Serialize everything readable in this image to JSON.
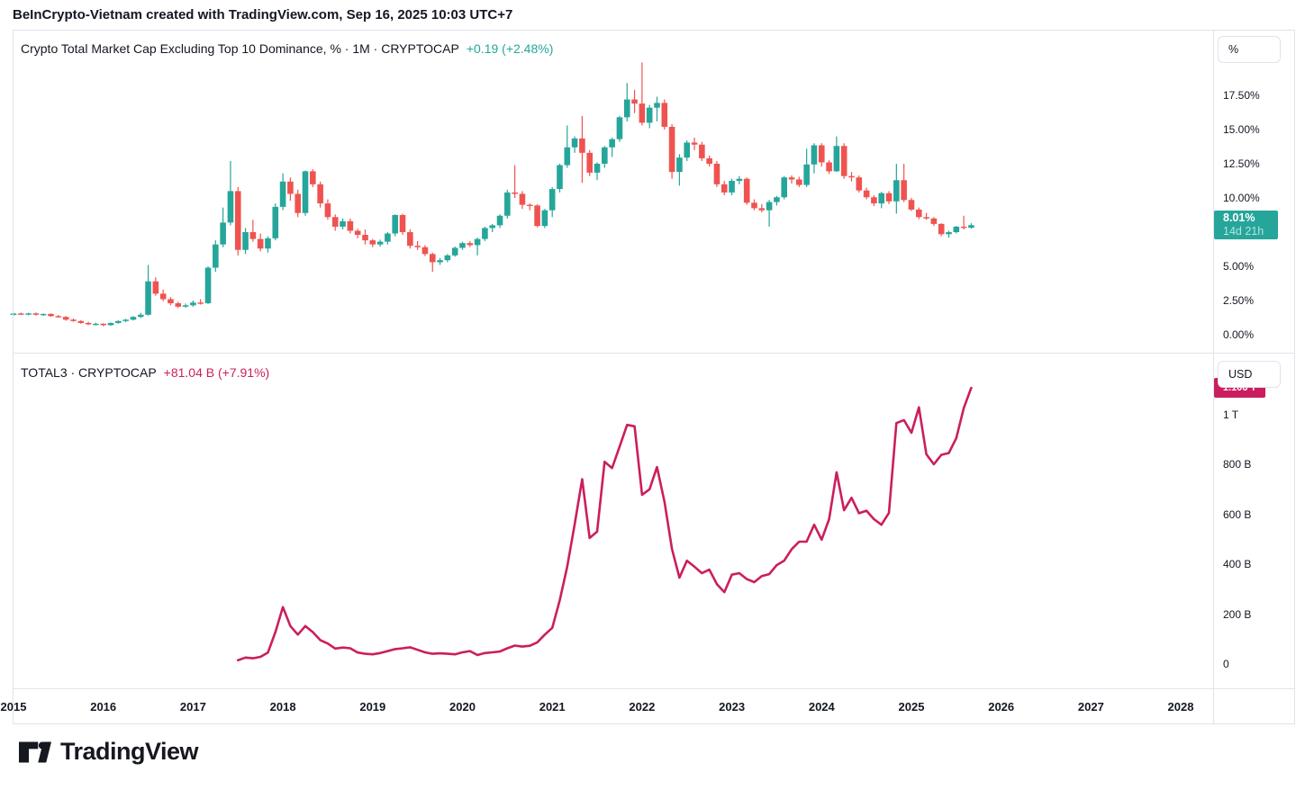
{
  "header": {
    "text": "BeInCrypto-Vietnam created with TradingView.com, Sep 16, 2025 10:03 UTC+7"
  },
  "panes": {
    "dominance": {
      "title": "Crypto Total Market Cap Excluding Top 10 Dominance, % · 1M · CRYPTOCAP",
      "change": "+0.19 (+2.48%)",
      "unit_button": "%",
      "ticks": [
        {
          "label": "17.50%",
          "value": 17.5
        },
        {
          "label": "15.00%",
          "value": 15.0
        },
        {
          "label": "12.50%",
          "value": 12.5
        },
        {
          "label": "10.00%",
          "value": 10.0
        },
        {
          "label": "5.00%",
          "value": 5.0
        },
        {
          "label": "2.50%",
          "value": 2.5
        },
        {
          "label": "0.00%",
          "value": 0.0
        }
      ],
      "price_badge": {
        "value": "8.01%",
        "countdown": "14d 21h",
        "numeric": 8.01
      }
    },
    "total3": {
      "title": "TOTAL3 · CRYPTOCAP",
      "change": "+81.04 B (+7.91%)",
      "unit_button": "USD",
      "ticks": [
        {
          "label": "1 T",
          "value": 1000
        },
        {
          "label": "800 B",
          "value": 800
        },
        {
          "label": "600 B",
          "value": 600
        },
        {
          "label": "400 B",
          "value": 400
        },
        {
          "label": "200 B",
          "value": 200
        },
        {
          "label": "0",
          "value": 0
        }
      ],
      "price_badge": {
        "value": "1.106 T",
        "numeric": 1106
      }
    }
  },
  "time_axis": {
    "years": [
      "2015",
      "2016",
      "2017",
      "2018",
      "2019",
      "2020",
      "2021",
      "2022",
      "2023",
      "2024",
      "2025",
      "2026",
      "2027",
      "2028"
    ]
  },
  "logo": {
    "text": "TradingView"
  },
  "colors": {
    "text": "#131722",
    "border": "#e0e3eb",
    "candle_up": "#26a69a",
    "candle_down": "#ef5350",
    "badge_teal": "#26a69a",
    "magenta": "#cb1e5e"
  },
  "chart_data": [
    {
      "type": "candlestick",
      "title": "Crypto Total Market Cap Excluding Top 10 Dominance, % · 1M · CRYPTOCAP",
      "interval": "1M",
      "unit": "%",
      "start": "2015-01",
      "ylim": [
        0,
        22
      ],
      "grid": false,
      "last_close": 8.01,
      "change": 0.19,
      "change_pct": 2.48,
      "ohlc": [
        [
          1.45,
          1.6,
          1.38,
          1.55
        ],
        [
          1.55,
          1.62,
          1.45,
          1.5
        ],
        [
          1.5,
          1.6,
          1.42,
          1.56
        ],
        [
          1.56,
          1.62,
          1.4,
          1.46
        ],
        [
          1.46,
          1.55,
          1.38,
          1.52
        ],
        [
          1.52,
          1.56,
          1.3,
          1.36
        ],
        [
          1.36,
          1.45,
          1.25,
          1.3
        ],
        [
          1.3,
          1.36,
          1.02,
          1.1
        ],
        [
          1.1,
          1.18,
          0.95,
          1.0
        ],
        [
          1.0,
          1.06,
          0.8,
          0.86
        ],
        [
          0.86,
          0.95,
          0.7,
          0.76
        ],
        [
          0.76,
          0.88,
          0.68,
          0.8
        ],
        [
          0.8,
          0.84,
          0.62,
          0.7
        ],
        [
          0.7,
          0.9,
          0.65,
          0.86
        ],
        [
          0.86,
          1.05,
          0.8,
          1.0
        ],
        [
          1.0,
          1.16,
          0.92,
          1.1
        ],
        [
          1.1,
          1.36,
          1.04,
          1.3
        ],
        [
          1.3,
          1.6,
          1.22,
          1.46
        ],
        [
          1.46,
          5.1,
          1.4,
          3.9
        ],
        [
          3.9,
          4.2,
          2.85,
          3.0
        ],
        [
          3.0,
          3.3,
          2.45,
          2.6
        ],
        [
          2.6,
          2.75,
          2.15,
          2.3
        ],
        [
          2.3,
          2.42,
          1.95,
          2.05
        ],
        [
          2.05,
          2.28,
          1.98,
          2.15
        ],
        [
          2.15,
          2.5,
          2.05,
          2.35
        ],
        [
          2.35,
          2.6,
          2.2,
          2.3
        ],
        [
          2.3,
          5.0,
          2.25,
          4.9
        ],
        [
          4.9,
          6.9,
          4.6,
          6.6
        ],
        [
          6.6,
          9.3,
          6.4,
          8.2
        ],
        [
          8.2,
          12.7,
          8.0,
          10.5
        ],
        [
          10.5,
          10.8,
          5.8,
          6.2
        ],
        [
          6.2,
          7.8,
          5.9,
          7.5
        ],
        [
          7.5,
          8.4,
          6.8,
          7.0
        ],
        [
          7.0,
          7.4,
          6.1,
          6.3
        ],
        [
          6.3,
          7.2,
          6.0,
          7.05
        ],
        [
          7.05,
          9.6,
          6.9,
          9.35
        ],
        [
          9.35,
          11.8,
          9.1,
          11.2
        ],
        [
          11.2,
          11.5,
          9.8,
          10.3
        ],
        [
          10.3,
          10.6,
          8.6,
          8.9
        ],
        [
          8.9,
          12.0,
          8.7,
          11.95
        ],
        [
          11.95,
          12.1,
          10.8,
          11.0
        ],
        [
          11.0,
          11.2,
          9.3,
          9.6
        ],
        [
          9.6,
          9.9,
          8.4,
          8.6
        ],
        [
          8.6,
          8.8,
          7.6,
          7.9
        ],
        [
          7.9,
          8.5,
          7.7,
          8.3
        ],
        [
          8.3,
          8.5,
          7.4,
          7.6
        ],
        [
          7.6,
          7.75,
          7.05,
          7.3
        ],
        [
          7.3,
          7.7,
          6.6,
          6.9
        ],
        [
          6.9,
          7.0,
          6.4,
          6.6
        ],
        [
          6.6,
          6.95,
          6.45,
          6.8
        ],
        [
          6.8,
          7.5,
          6.6,
          7.4
        ],
        [
          7.4,
          8.8,
          7.2,
          8.75
        ],
        [
          8.75,
          8.85,
          7.3,
          7.5
        ],
        [
          7.5,
          7.7,
          6.3,
          6.5
        ],
        [
          6.5,
          6.85,
          6.2,
          6.4
        ],
        [
          6.4,
          6.55,
          5.75,
          5.9
        ],
        [
          5.9,
          6.0,
          4.6,
          5.3
        ],
        [
          5.3,
          5.6,
          5.1,
          5.45
        ],
        [
          5.45,
          5.9,
          5.3,
          5.8
        ],
        [
          5.8,
          6.45,
          5.7,
          6.35
        ],
        [
          6.35,
          6.8,
          6.2,
          6.7
        ],
        [
          6.7,
          6.85,
          6.4,
          6.55
        ],
        [
          6.55,
          7.1,
          5.8,
          7.0
        ],
        [
          7.0,
          7.9,
          6.85,
          7.8
        ],
        [
          7.8,
          8.1,
          7.5,
          8.0
        ],
        [
          8.0,
          8.8,
          7.8,
          8.7
        ],
        [
          8.7,
          10.6,
          8.5,
          10.4
        ],
        [
          10.4,
          12.4,
          10.0,
          10.3
        ],
        [
          10.3,
          10.5,
          9.2,
          9.5
        ],
        [
          9.5,
          9.6,
          9.1,
          9.45
        ],
        [
          9.45,
          9.55,
          7.85,
          7.95
        ],
        [
          7.95,
          9.2,
          7.8,
          9.1
        ],
        [
          9.1,
          10.8,
          8.6,
          10.65
        ],
        [
          10.65,
          12.5,
          10.4,
          12.4
        ],
        [
          12.4,
          15.3,
          12.2,
          13.7
        ],
        [
          13.7,
          14.5,
          13.3,
          14.35
        ],
        [
          14.35,
          16.0,
          11.1,
          13.3
        ],
        [
          13.3,
          13.5,
          11.6,
          11.85
        ],
        [
          11.85,
          12.6,
          11.3,
          12.5
        ],
        [
          12.5,
          13.8,
          12.2,
          13.7
        ],
        [
          13.7,
          14.4,
          13.0,
          14.3
        ],
        [
          14.3,
          16.0,
          14.1,
          15.9
        ],
        [
          15.9,
          18.4,
          15.6,
          17.2
        ],
        [
          17.2,
          17.9,
          16.2,
          16.9
        ],
        [
          16.9,
          19.9,
          15.3,
          15.5
        ],
        [
          15.5,
          16.8,
          15.1,
          16.6
        ],
        [
          16.6,
          17.4,
          15.6,
          16.95
        ],
        [
          16.95,
          17.2,
          15.0,
          15.2
        ],
        [
          15.2,
          15.4,
          11.4,
          11.9
        ],
        [
          11.9,
          13.2,
          10.9,
          12.95
        ],
        [
          12.95,
          14.2,
          12.7,
          14.05
        ],
        [
          14.05,
          14.4,
          13.5,
          13.9
        ],
        [
          13.9,
          14.1,
          12.7,
          12.9
        ],
        [
          12.9,
          13.1,
          12.3,
          12.5
        ],
        [
          12.5,
          12.7,
          10.8,
          11.0
        ],
        [
          11.0,
          11.25,
          10.2,
          10.4
        ],
        [
          10.4,
          11.4,
          10.2,
          11.25
        ],
        [
          11.25,
          11.6,
          11.0,
          11.4
        ],
        [
          11.4,
          11.5,
          9.5,
          9.65
        ],
        [
          9.65,
          9.9,
          9.1,
          9.25
        ],
        [
          9.25,
          9.55,
          8.95,
          9.1
        ],
        [
          9.1,
          9.85,
          7.9,
          9.7
        ],
        [
          9.7,
          10.15,
          9.45,
          10.05
        ],
        [
          10.05,
          11.6,
          9.9,
          11.5
        ],
        [
          11.5,
          11.65,
          11.05,
          11.35
        ],
        [
          11.35,
          11.55,
          10.8,
          10.95
        ],
        [
          10.95,
          13.6,
          10.8,
          12.45
        ],
        [
          12.45,
          14.0,
          11.8,
          13.85
        ],
        [
          13.85,
          14.0,
          12.3,
          12.6
        ],
        [
          12.6,
          12.75,
          11.75,
          11.95
        ],
        [
          11.95,
          14.5,
          11.9,
          13.8
        ],
        [
          13.8,
          14.0,
          11.4,
          11.6
        ],
        [
          11.6,
          11.9,
          11.2,
          11.5
        ],
        [
          11.5,
          11.65,
          10.4,
          10.55
        ],
        [
          10.55,
          10.75,
          9.9,
          10.05
        ],
        [
          10.05,
          10.2,
          9.4,
          9.6
        ],
        [
          9.6,
          10.45,
          9.25,
          10.35
        ],
        [
          10.35,
          10.5,
          9.55,
          9.75
        ],
        [
          9.75,
          12.5,
          8.85,
          11.3
        ],
        [
          11.3,
          12.5,
          9.7,
          9.85
        ],
        [
          9.85,
          10.0,
          9.05,
          9.15
        ],
        [
          9.15,
          9.3,
          8.45,
          8.6
        ],
        [
          8.6,
          8.9,
          8.4,
          8.5
        ],
        [
          8.5,
          8.6,
          7.95,
          8.1
        ],
        [
          8.1,
          8.15,
          7.2,
          7.35
        ],
        [
          7.35,
          7.6,
          7.1,
          7.5
        ],
        [
          7.5,
          7.95,
          7.4,
          7.9
        ],
        [
          7.9,
          8.7,
          7.7,
          7.82
        ],
        [
          7.82,
          8.15,
          7.75,
          8.01
        ]
      ]
    },
    {
      "type": "line",
      "title": "TOTAL3 · CRYPTOCAP",
      "interval": "1M",
      "unit": "USD billions",
      "start": "2017-07",
      "start_month_index": 30,
      "ylim": [
        0,
        1250
      ],
      "grid": false,
      "last_value_b": 1106,
      "change": "+81.04 B",
      "change_pct": 7.91,
      "values": [
        15,
        26,
        23,
        29,
        46,
        128,
        228,
        152,
        118,
        152,
        128,
        96,
        82,
        62,
        66,
        63,
        46,
        41,
        39,
        44,
        52,
        60,
        63,
        67,
        57,
        47,
        41,
        43,
        41,
        39,
        47,
        52,
        36,
        44,
        47,
        50,
        63,
        74,
        70,
        73,
        87,
        118,
        145,
        255,
        390,
        560,
        740,
        505,
        530,
        810,
        785,
        870,
        958,
        952,
        678,
        700,
        789,
        650,
        461,
        346,
        414,
        390,
        364,
        378,
        320,
        288,
        358,
        364,
        340,
        328,
        352,
        360,
        396,
        414,
        460,
        490,
        490,
        558,
        498,
        580,
        768,
        616,
        666,
        604,
        614,
        580,
        558,
        605,
        965,
        977,
        926,
        1028,
        840,
        800,
        838,
        845,
        905,
        1025,
        1106
      ]
    }
  ]
}
